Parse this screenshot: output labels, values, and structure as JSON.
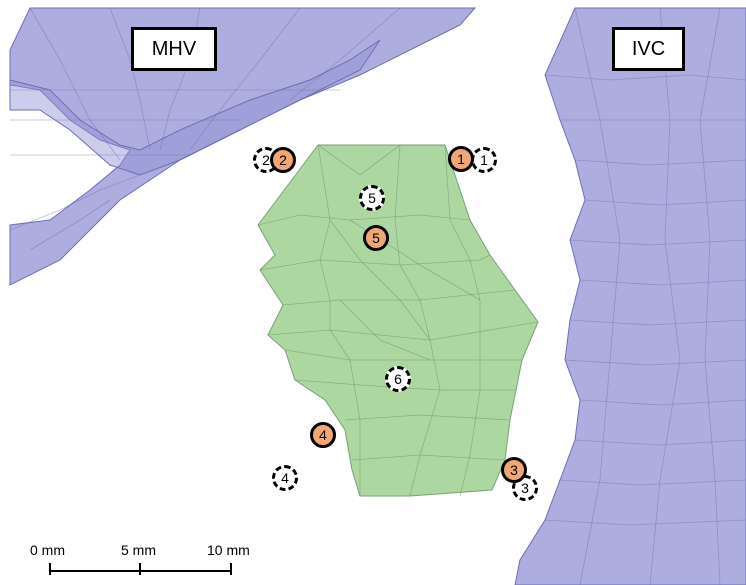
{
  "labels": {
    "mhv": "MHV",
    "ivc": "IVC"
  },
  "markers_solid": [
    {
      "text": "1"
    },
    {
      "text": "2"
    },
    {
      "text": "3"
    },
    {
      "text": "4"
    },
    {
      "text": "5"
    }
  ],
  "markers_dashed": [
    {
      "text": "1"
    },
    {
      "text": "2"
    },
    {
      "text": "3"
    },
    {
      "text": "4"
    },
    {
      "text": "5"
    },
    {
      "text": "6"
    }
  ],
  "scale_bar": {
    "labels": [
      "0 mm",
      "5 mm",
      "10 mm"
    ]
  },
  "colors": {
    "vessel": "#8e8ed2",
    "tumor": "#9fd08f",
    "marker_solid": "#f0a774",
    "marker_dashed": "#ffffff"
  }
}
